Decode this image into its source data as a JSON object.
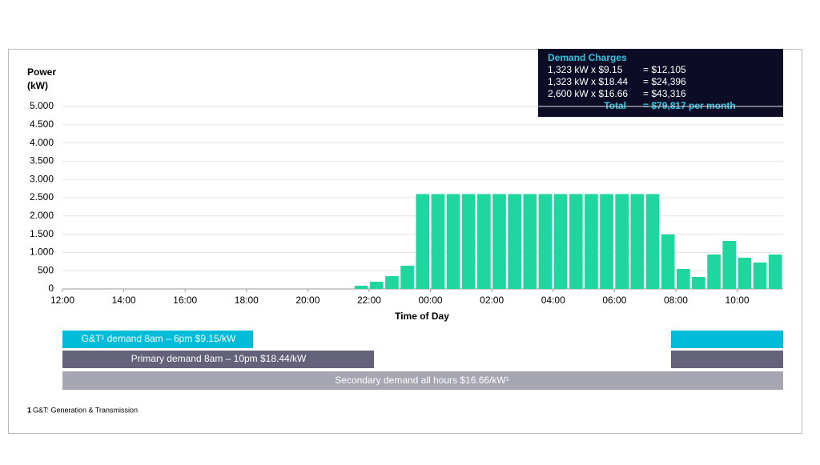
{
  "chart_data": {
    "type": "bar",
    "y_label_lines": [
      "Power",
      "(kW)"
    ],
    "x_label": "Time of Day",
    "color": "#1fd69f",
    "grid": true,
    "x": [
      12,
      12.5,
      13,
      13.5,
      14,
      14.5,
      15,
      15.5,
      16,
      16.5,
      17,
      17.5,
      18,
      18.5,
      19,
      19.5,
      20,
      20.5,
      21,
      21.5,
      22,
      22.5,
      23,
      23.5,
      24,
      24.5,
      25,
      25.5,
      26,
      26.5,
      27,
      27.5,
      28,
      28.5,
      29,
      29.5,
      30,
      30.5,
      31,
      31.5,
      32,
      32.5,
      33,
      33.5,
      34,
      34.5,
      35
    ],
    "values": [
      0,
      0,
      0,
      0,
      0,
      0,
      0,
      0,
      0,
      0,
      0,
      0,
      0,
      0,
      0,
      0,
      0,
      0,
      0,
      88,
      197,
      350,
      636,
      2600,
      2600,
      2600,
      2600,
      2600,
      2600,
      2600,
      2600,
      2600,
      2600,
      2600,
      2600,
      2600,
      2600,
      2600,
      2600,
      1491,
      548,
      329,
      943,
      1316,
      855,
      724,
      943
    ],
    "xlim": [
      12,
      35.5
    ],
    "xticks": [
      {
        "value": 12,
        "label": "12:00"
      },
      {
        "value": 14,
        "label": "14:00"
      },
      {
        "value": 16,
        "label": "16:00"
      },
      {
        "value": 18,
        "label": "18:00"
      },
      {
        "value": 20,
        "label": "20:00"
      },
      {
        "value": 22,
        "label": "22:00"
      },
      {
        "value": 24,
        "label": "00:00"
      },
      {
        "value": 26,
        "label": "02:00"
      },
      {
        "value": 28,
        "label": "04:00"
      },
      {
        "value": 30,
        "label": "06:00"
      },
      {
        "value": 32,
        "label": "08:00"
      },
      {
        "value": 34,
        "label": "10:00"
      }
    ],
    "ylim": [
      0,
      5000
    ],
    "yticks": [
      0,
      500,
      {
        "value": 1000,
        "label": "1.000"
      },
      {
        "value": 1500,
        "label": "1.500"
      },
      {
        "value": 2000,
        "label": "2.000"
      },
      {
        "value": 2500,
        "label": "2.500"
      },
      {
        "value": 3000,
        "label": "3.000"
      },
      {
        "value": 3500,
        "label": "3.500"
      },
      {
        "value": 4000,
        "label": "4.000"
      },
      {
        "value": 4500,
        "label": "4.500"
      },
      {
        "value": 5000,
        "label": "5.000"
      }
    ]
  },
  "demand_charges": {
    "title": "Demand Charges",
    "rows": [
      [
        "1,323 kW x $9.15",
        "= $12,105"
      ],
      [
        "1,323 kW x $18.44",
        "= $24,396"
      ],
      [
        "2,600 kW x $16.66",
        "= $43,316"
      ]
    ],
    "total": [
      "Total",
      "= $79,817 per month"
    ]
  },
  "demand_bands": {
    "gt": "G&T¹ demand 8am – 6pm $9.15/kW",
    "primary": "Primary demand 8am – 10pm  $18.44/kW",
    "secondary": "Secondary demand all hours $16.66/kW¹"
  },
  "footnote": {
    "marker": "1",
    "text": "G&T: Generation & Transmission"
  }
}
